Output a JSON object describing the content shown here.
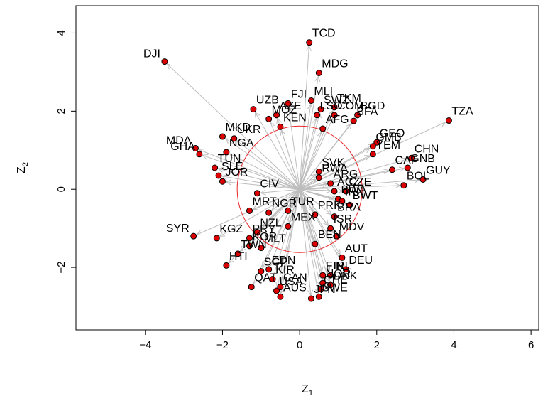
{
  "chart_data": {
    "type": "scatter",
    "title": "",
    "xlabel": "Z",
    "xlabel_sub": "1",
    "ylabel": "Z",
    "ylabel_sub": "2",
    "xlim": [
      -5.8,
      6.2
    ],
    "ylim": [
      -3.6,
      4.7
    ],
    "x_ticks": [
      -4,
      -2,
      0,
      2,
      4,
      6
    ],
    "y_ticks": [
      -2,
      0,
      2,
      4
    ],
    "x_tick_labels": [
      "−4",
      "−2",
      "0",
      "2",
      "4",
      "6"
    ],
    "y_tick_labels": [
      "−2",
      "0",
      "2",
      "4"
    ],
    "grid": false,
    "legend": "none",
    "point_fill": "#dd0000",
    "point_stroke": "#000000",
    "arrow_color": "#bdbdbd",
    "circle_color": "#e8262a",
    "circle": {
      "cx": 0.0,
      "cy": 0.0,
      "r": 1.62
    },
    "points": [
      {
        "label": "TCD",
        "x": 0.25,
        "y": 3.76
      },
      {
        "label": "DJI",
        "x": -3.5,
        "y": 3.27
      },
      {
        "label": "MDG",
        "x": 0.5,
        "y": 2.98
      },
      {
        "label": "MLI",
        "x": 0.3,
        "y": 2.27
      },
      {
        "label": "SWZ",
        "x": 0.55,
        "y": 2.05
      },
      {
        "label": "TKM",
        "x": 0.9,
        "y": 2.1
      },
      {
        "label": "LSO",
        "x": 0.45,
        "y": 1.9
      },
      {
        "label": "COM",
        "x": 0.9,
        "y": 1.9
      },
      {
        "label": "BGD",
        "x": 1.5,
        "y": 1.9
      },
      {
        "label": "BFA",
        "x": 1.4,
        "y": 1.75
      },
      {
        "label": "TZA",
        "x": 3.87,
        "y": 1.76
      },
      {
        "label": "FJI",
        "x": -0.3,
        "y": 2.2
      },
      {
        "label": "UZB",
        "x": -1.2,
        "y": 2.05
      },
      {
        "label": "AZE",
        "x": -0.6,
        "y": 1.9
      },
      {
        "label": "MOZ",
        "x": -0.8,
        "y": 1.8
      },
      {
        "label": "KEN",
        "x": -0.5,
        "y": 1.6
      },
      {
        "label": "AFG",
        "x": 0.6,
        "y": 1.55
      },
      {
        "label": "GEO",
        "x": 2.0,
        "y": 1.2
      },
      {
        "label": "MKD",
        "x": -2.0,
        "y": 1.35
      },
      {
        "label": "UKR",
        "x": -1.7,
        "y": 1.3
      },
      {
        "label": "MDA",
        "x": -2.7,
        "y": 1.05
      },
      {
        "label": "GHA",
        "x": -2.6,
        "y": 0.9
      },
      {
        "label": "NGA",
        "x": -1.9,
        "y": 0.95
      },
      {
        "label": "YEM",
        "x": 1.9,
        "y": 0.9
      },
      {
        "label": "GMB",
        "x": 1.9,
        "y": 1.1
      },
      {
        "label": "CHN",
        "x": 2.9,
        "y": 0.8
      },
      {
        "label": "GNB",
        "x": 2.8,
        "y": 0.55
      },
      {
        "label": "CAF",
        "x": 2.4,
        "y": 0.5
      },
      {
        "label": "GUY",
        "x": 3.2,
        "y": 0.25
      },
      {
        "label": "BOL",
        "x": 2.7,
        "y": 0.1
      },
      {
        "label": "SLE",
        "x": -2.1,
        "y": 0.35
      },
      {
        "label": "TUN",
        "x": -2.2,
        "y": 0.55
      },
      {
        "label": "JOR",
        "x": -2.0,
        "y": 0.2
      },
      {
        "label": "CIV",
        "x": -1.1,
        "y": -0.1
      },
      {
        "label": "RWA",
        "x": 0.5,
        "y": 0.3
      },
      {
        "label": "SVK",
        "x": 0.5,
        "y": 0.45
      },
      {
        "label": "ARG",
        "x": 0.8,
        "y": 0.15
      },
      {
        "label": "ACZ",
        "x": 0.9,
        "y": -0.05
      },
      {
        "label": "CZE",
        "x": 1.2,
        "y": -0.05
      },
      {
        "label": "BWA",
        "x": 1.0,
        "y": -0.25
      },
      {
        "label": "IRN",
        "x": 1.1,
        "y": -0.3
      },
      {
        "label": "BWT",
        "x": 1.3,
        "y": -0.4
      },
      {
        "label": "MRT",
        "x": -1.3,
        "y": -0.55
      },
      {
        "label": "NGR",
        "x": -0.8,
        "y": -0.6
      },
      {
        "label": "TUR",
        "x": -0.3,
        "y": -0.55
      },
      {
        "label": "PRK",
        "x": 0.4,
        "y": -0.65
      },
      {
        "label": "BRA",
        "x": 0.9,
        "y": -0.7
      },
      {
        "label": "MEX",
        "x": -0.3,
        "y": -0.95
      },
      {
        "label": "ISR",
        "x": 0.8,
        "y": -1.0
      },
      {
        "label": "MDV",
        "x": 0.95,
        "y": -1.2
      },
      {
        "label": "NZL",
        "x": -1.1,
        "y": -1.1
      },
      {
        "label": "PRY",
        "x": -1.3,
        "y": -1.25
      },
      {
        "label": "BEN",
        "x": 0.4,
        "y": -1.4
      },
      {
        "label": "SYR",
        "x": -2.75,
        "y": -1.2
      },
      {
        "label": "KGZ",
        "x": -2.15,
        "y": -1.25
      },
      {
        "label": "KOR",
        "x": -1.3,
        "y": -1.45
      },
      {
        "label": "MLT",
        "x": -1.0,
        "y": -1.5
      },
      {
        "label": "TWN",
        "x": -1.6,
        "y": -1.65
      },
      {
        "label": "HTI",
        "x": -1.9,
        "y": -1.95
      },
      {
        "label": "AUT",
        "x": 1.1,
        "y": -1.75
      },
      {
        "label": "DEU",
        "x": 1.2,
        "y": -2.05
      },
      {
        "label": "SGP",
        "x": -1.0,
        "y": -2.1
      },
      {
        "label": "EDN",
        "x": -0.8,
        "y": -2.05
      },
      {
        "label": "KIR",
        "x": -0.7,
        "y": -2.3
      },
      {
        "label": "FIN",
        "x": 0.6,
        "y": -2.2
      },
      {
        "label": "IRL",
        "x": 0.8,
        "y": -2.2
      },
      {
        "label": "NOR",
        "x": 0.6,
        "y": -2.4
      },
      {
        "label": "DNK",
        "x": 0.8,
        "y": -2.45
      },
      {
        "label": "CHE",
        "x": 0.55,
        "y": -2.55
      },
      {
        "label": "QAT",
        "x": -1.25,
        "y": -2.5
      },
      {
        "label": "CAN",
        "x": -0.5,
        "y": -2.5
      },
      {
        "label": "USA",
        "x": -0.6,
        "y": -2.6
      },
      {
        "label": "AUS",
        "x": -0.5,
        "y": -2.75
      },
      {
        "label": "SWE",
        "x": 0.5,
        "y": -2.75
      },
      {
        "label": "JPN",
        "x": 0.3,
        "y": -2.8
      }
    ]
  }
}
